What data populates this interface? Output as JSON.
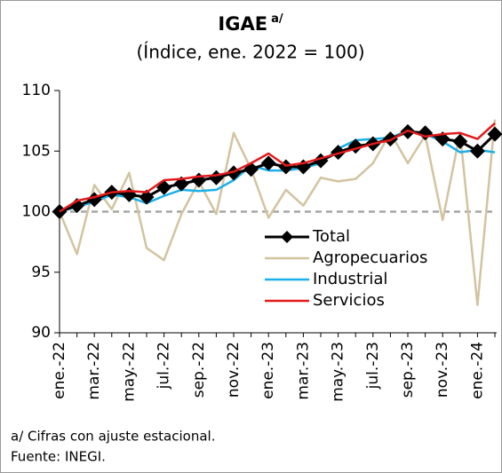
{
  "chart_data": {
    "type": "line",
    "title": "IGAE",
    "title_note": "a/",
    "subtitle": "(Índice, ene. 2022 = 100)",
    "footnotes": [
      "a/ Cifras con ajuste estacional.",
      "Fuente: INEGI."
    ],
    "categories": [
      "ene.-22",
      null,
      "mar.-22",
      null,
      "may.-22",
      null,
      "jul.-22",
      null,
      "sep.-22",
      null,
      "nov.-22",
      null,
      "ene.-23",
      null,
      "mar.-23",
      null,
      "may.-23",
      null,
      "jul.-23",
      null,
      "sep.-23",
      null,
      "nov.-23",
      null,
      "ene.-24",
      null
    ],
    "ylim": [
      90,
      110
    ],
    "yticks": [
      90,
      95,
      100,
      105,
      110
    ],
    "reference_line": 100,
    "legend": "center-right",
    "series": [
      {
        "name": "Total",
        "color": "#000000",
        "marker": "diamond",
        "values": [
          100,
          100.5,
          101.0,
          101.6,
          101.4,
          101.2,
          102.0,
          102.3,
          102.6,
          102.8,
          103.2,
          103.5,
          104.0,
          103.7,
          103.7,
          104.2,
          104.9,
          105.4,
          105.6,
          106.0,
          106.6,
          106.5,
          106.0,
          105.8,
          105.0,
          106.4
        ]
      },
      {
        "name": "Agropecuarios",
        "color": "#d3c3a0",
        "values": [
          100,
          96.5,
          102.2,
          100.2,
          103.2,
          97.0,
          96.0,
          99.8,
          102.5,
          99.8,
          106.5,
          103.5,
          99.5,
          101.8,
          100.5,
          102.8,
          102.5,
          102.7,
          104.0,
          106.5,
          104.0,
          106.3,
          99.3,
          106.5,
          92.3,
          107.6
        ]
      },
      {
        "name": "Industrial",
        "color": "#1ab0e8",
        "values": [
          100,
          100.4,
          100.8,
          101.4,
          101.2,
          100.7,
          101.3,
          101.8,
          101.7,
          101.8,
          102.6,
          103.8,
          103.4,
          103.4,
          103.6,
          104.0,
          105.2,
          105.9,
          106.0,
          106.1,
          106.7,
          106.4,
          105.8,
          104.9,
          105.1,
          104.9
        ]
      },
      {
        "name": "Servicios",
        "color": "#e31a1c",
        "values": [
          100,
          100.9,
          101.2,
          101.6,
          101.7,
          101.6,
          102.6,
          102.7,
          102.9,
          103.0,
          103.3,
          104.0,
          104.8,
          103.8,
          104.0,
          104.4,
          104.8,
          105.2,
          105.6,
          105.9,
          106.7,
          106.2,
          106.4,
          106.5,
          106.0,
          107.3
        ]
      }
    ]
  }
}
